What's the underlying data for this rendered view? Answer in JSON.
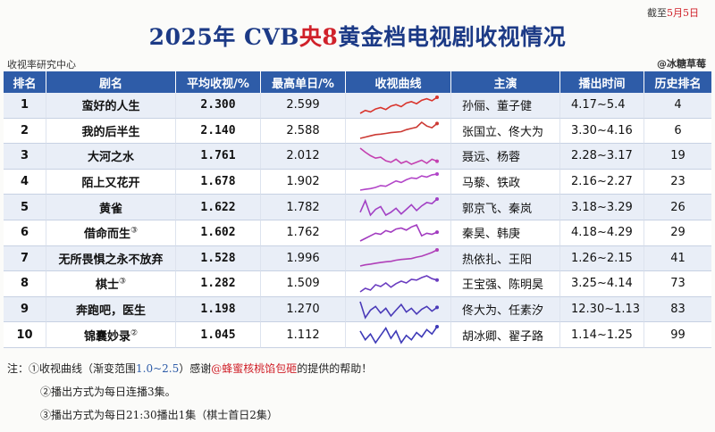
{
  "header": {
    "deadline_prefix": "截至",
    "deadline_date": "5月5日",
    "title_part1": "2025年 CVB",
    "title_part2": "央8",
    "title_part3": "黄金档电视剧收视情况",
    "source": "收视率研究中心",
    "credit": "@冰糖草莓"
  },
  "columns": [
    "排名",
    "剧名",
    "平均收视/%",
    "最高单日/%",
    "收视曲线",
    "主演",
    "播出时间",
    "历史排名"
  ],
  "rows": [
    {
      "rank": "1",
      "name": "蛮好的人生",
      "note": "",
      "avg": "2.300",
      "peak": "2.599",
      "cast": "孙俪、董子健",
      "period": "4.17~5.4",
      "history": "4",
      "curve": [
        2.05,
        2.15,
        2.1,
        2.2,
        2.25,
        2.18,
        2.3,
        2.35,
        2.28,
        2.4,
        2.45,
        2.38,
        2.5,
        2.55,
        2.48,
        2.6
      ],
      "color": "#d9342c"
    },
    {
      "rank": "2",
      "name": "我的后半生",
      "note": "",
      "avg": "2.140",
      "peak": "2.588",
      "cast": "张国立、佟大为",
      "period": "3.30~4.16",
      "history": "6",
      "curve": [
        1.85,
        1.9,
        1.95,
        2.0,
        2.02,
        2.05,
        2.08,
        2.1,
        2.12,
        2.2,
        2.25,
        2.3,
        2.5,
        2.35,
        2.28,
        2.45
      ],
      "color": "#cc3a34"
    },
    {
      "rank": "3",
      "name": "大河之水",
      "note": "",
      "avg": "1.761",
      "peak": "2.012",
      "cast": "聂远、杨蓉",
      "period": "2.28~3.17",
      "history": "19",
      "curve": [
        2.0,
        1.92,
        1.85,
        1.8,
        1.82,
        1.75,
        1.72,
        1.78,
        1.7,
        1.74,
        1.68,
        1.72,
        1.76,
        1.7,
        1.78,
        1.74
      ],
      "color": "#c440b0"
    },
    {
      "rank": "4",
      "name": "陌上又花开",
      "note": "",
      "avg": "1.678",
      "peak": "1.902",
      "cast": "马藜、铁政",
      "period": "2.16~2.27",
      "history": "23",
      "curve": [
        1.48,
        1.5,
        1.52,
        1.55,
        1.6,
        1.58,
        1.65,
        1.72,
        1.68,
        1.75,
        1.8,
        1.78,
        1.85,
        1.82,
        1.88,
        1.9
      ],
      "color": "#b245c8"
    },
    {
      "rank": "5",
      "name": "黄雀",
      "note": "",
      "avg": "1.622",
      "peak": "1.782",
      "cast": "郭京飞、秦岚",
      "period": "3.18~3.29",
      "history": "26",
      "curve": [
        1.55,
        1.75,
        1.5,
        1.6,
        1.65,
        1.5,
        1.55,
        1.62,
        1.52,
        1.6,
        1.68,
        1.58,
        1.66,
        1.72,
        1.7,
        1.78
      ],
      "color": "#a240c4"
    },
    {
      "rank": "6",
      "name": "借命而生",
      "note": "③",
      "avg": "1.602",
      "peak": "1.762",
      "cast": "秦昊、韩庚",
      "period": "4.18~4.29",
      "history": "29",
      "curve": [
        1.45,
        1.5,
        1.55,
        1.6,
        1.58,
        1.65,
        1.62,
        1.68,
        1.7,
        1.66,
        1.72,
        1.76,
        1.55,
        1.6,
        1.58,
        1.62
      ],
      "color": "#a23cc0"
    },
    {
      "rank": "7",
      "name": "无所畏惧之永不放弃",
      "note": "",
      "avg": "1.528",
      "peak": "1.996",
      "cast": "热依扎、王阳",
      "period": "1.26~2.15",
      "history": "41",
      "curve": [
        1.3,
        1.35,
        1.38,
        1.42,
        1.45,
        1.48,
        1.5,
        1.55,
        1.58,
        1.6,
        1.62,
        1.68,
        1.72,
        1.8,
        1.88,
        1.99
      ],
      "color": "#b040b8"
    },
    {
      "rank": "8",
      "name": "棋士",
      "note": "③",
      "avg": "1.282",
      "peak": "1.509",
      "cast": "王宝强、陈明昊",
      "period": "3.25~4.14",
      "history": "73",
      "curve": [
        1.05,
        1.15,
        1.1,
        1.25,
        1.2,
        1.3,
        1.18,
        1.28,
        1.35,
        1.3,
        1.4,
        1.38,
        1.45,
        1.5,
        1.42,
        1.38
      ],
      "color": "#6a3cc0"
    },
    {
      "rank": "9",
      "name": "奔跑吧，医生",
      "note": "",
      "avg": "1.198",
      "peak": "1.270",
      "cast": "佟大为、任素汐",
      "period": "12.30~1.13",
      "history": "83",
      "curve": [
        1.27,
        1.1,
        1.18,
        1.22,
        1.15,
        1.2,
        1.12,
        1.18,
        1.24,
        1.16,
        1.2,
        1.14,
        1.19,
        1.22,
        1.17,
        1.21
      ],
      "color": "#4a3ab8"
    },
    {
      "rank": "10",
      "name": "锦囊妙录",
      "note": "②",
      "avg": "1.045",
      "peak": "1.112",
      "cast": "胡冰卿、翟子路",
      "period": "1.14~1.25",
      "history": "99",
      "curve": [
        1.08,
        1.02,
        1.06,
        1.0,
        1.05,
        1.1,
        1.03,
        1.08,
        1.0,
        1.05,
        1.02,
        1.07,
        1.04,
        1.09,
        1.06,
        1.11
      ],
      "color": "#3e3ab8"
    }
  ],
  "notes": {
    "label": "注：",
    "n1_a": "①收视曲线（渐变范围",
    "n1_range": "1.0~2.5",
    "n1_b": "）感谢",
    "n1_thanks": "@蜂蜜核桃馅包砸",
    "n1_c": "的提供的帮助！",
    "n2": "②播出方式为每日连播3集。",
    "n3": "③播出方式为每日21:30播出1集（棋士首日2集）"
  },
  "colors": {
    "header_blue": "#2e5ca8",
    "title_blue": "#1c3a86",
    "accent_red": "#d0212a",
    "stripe": "#e9eef7"
  }
}
